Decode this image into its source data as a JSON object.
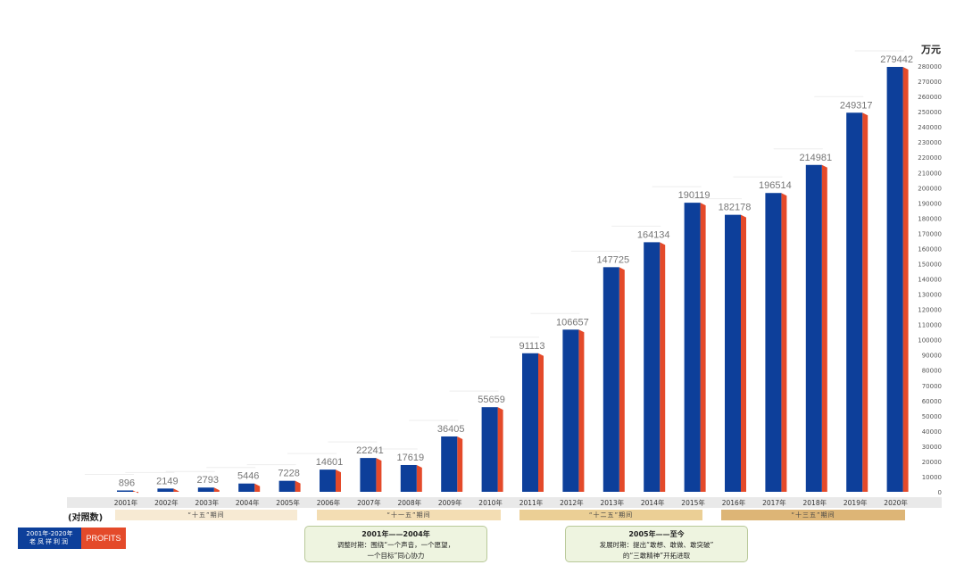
{
  "chart_data": {
    "type": "bar",
    "unit": "万元",
    "categories": [
      "2001年",
      "2002年",
      "2003年",
      "2004年",
      "2005年",
      "2006年",
      "2007年",
      "2008年",
      "2009年",
      "2010年",
      "2011年",
      "2012年",
      "2013年",
      "2014年",
      "2015年",
      "2016年",
      "2017年",
      "2018年",
      "2019年",
      "2020年"
    ],
    "values": [
      896,
      2149,
      2793,
      5446,
      7228,
      14601,
      22241,
      17619,
      36405,
      55659,
      91113,
      106657,
      147725,
      164134,
      190119,
      182178,
      196514,
      214981,
      249317,
      279442
    ],
    "ylim": [
      0,
      280000
    ],
    "ytick_step": 10000,
    "yaxis_side": "right",
    "colors": {
      "front": "#0d3f9a",
      "side": "#e44a2a",
      "label": "#777777"
    }
  },
  "compare_label": "(对照数)",
  "periods": [
    {
      "label": "“十五”期间",
      "color": "#f7ead3"
    },
    {
      "label": "“十一五”期间",
      "color": "#f3ddb3"
    },
    {
      "label": "“十二五”期间",
      "color": "#ebcf95"
    },
    {
      "label": "“十三五”期间",
      "color": "#ddb576"
    }
  ],
  "legend": {
    "line1": "2001年-2020年",
    "line2": "老凤祥利润",
    "right": "PROFITS"
  },
  "notes": [
    {
      "title": "2001年——2004年",
      "line1": "调整时期：围绕“一个声音，一个愿望，",
      "line2": "一个目标”同心协力"
    },
    {
      "title": "2005年——至今",
      "line1": "发展时期：提出“敢想、敢做、敢突破”",
      "line2": "的“三敢精神”开拓进取"
    }
  ]
}
